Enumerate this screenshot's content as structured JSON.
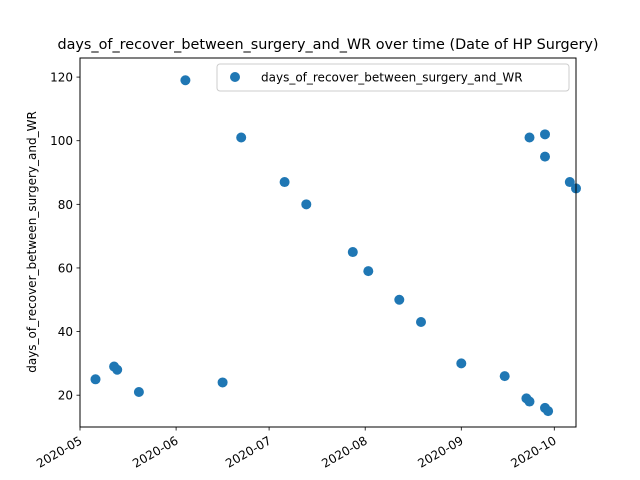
{
  "chart_data": {
    "type": "scatter",
    "title": "days_of_recover_between_surgery_and_WR over time (Date of HP Surgery)",
    "xlabel": "",
    "ylabel": "days_of_recover_between_surgery_and_WR",
    "x_type": "date",
    "xlim": [
      "2020-05-01",
      "2020-10-08"
    ],
    "ylim": [
      10,
      126
    ],
    "x_ticks": [
      "2020-05-01",
      "2020-06-01",
      "2020-07-01",
      "2020-08-01",
      "2020-09-01",
      "2020-10-01"
    ],
    "x_tick_labels": [
      "2020-05",
      "2020-06",
      "2020-07",
      "2020-08",
      "2020-09",
      "2020-10"
    ],
    "y_ticks": [
      20,
      40,
      60,
      80,
      100,
      120
    ],
    "grid": false,
    "legend": {
      "position": "top-right",
      "entries": [
        "days_of_recover_between_surgery_and_WR"
      ]
    },
    "series": [
      {
        "name": "days_of_recover_between_surgery_and_WR",
        "color": "#1f77b4",
        "marker": "circle",
        "points": [
          {
            "x": "2020-05-06",
            "y": 25
          },
          {
            "x": "2020-05-12",
            "y": 29
          },
          {
            "x": "2020-05-13",
            "y": 28
          },
          {
            "x": "2020-05-20",
            "y": 21
          },
          {
            "x": "2020-06-04",
            "y": 119
          },
          {
            "x": "2020-06-16",
            "y": 24
          },
          {
            "x": "2020-06-22",
            "y": 101
          },
          {
            "x": "2020-07-06",
            "y": 87
          },
          {
            "x": "2020-07-13",
            "y": 80
          },
          {
            "x": "2020-07-28",
            "y": 65
          },
          {
            "x": "2020-08-02",
            "y": 59
          },
          {
            "x": "2020-08-12",
            "y": 50
          },
          {
            "x": "2020-08-19",
            "y": 43
          },
          {
            "x": "2020-09-01",
            "y": 30
          },
          {
            "x": "2020-09-15",
            "y": 26
          },
          {
            "x": "2020-09-22",
            "y": 19
          },
          {
            "x": "2020-09-23",
            "y": 18
          },
          {
            "x": "2020-09-23",
            "y": 101
          },
          {
            "x": "2020-09-28",
            "y": 102
          },
          {
            "x": "2020-09-28",
            "y": 95
          },
          {
            "x": "2020-09-28",
            "y": 16
          },
          {
            "x": "2020-09-29",
            "y": 15
          },
          {
            "x": "2020-10-06",
            "y": 87
          },
          {
            "x": "2020-10-08",
            "y": 85
          }
        ]
      }
    ]
  }
}
